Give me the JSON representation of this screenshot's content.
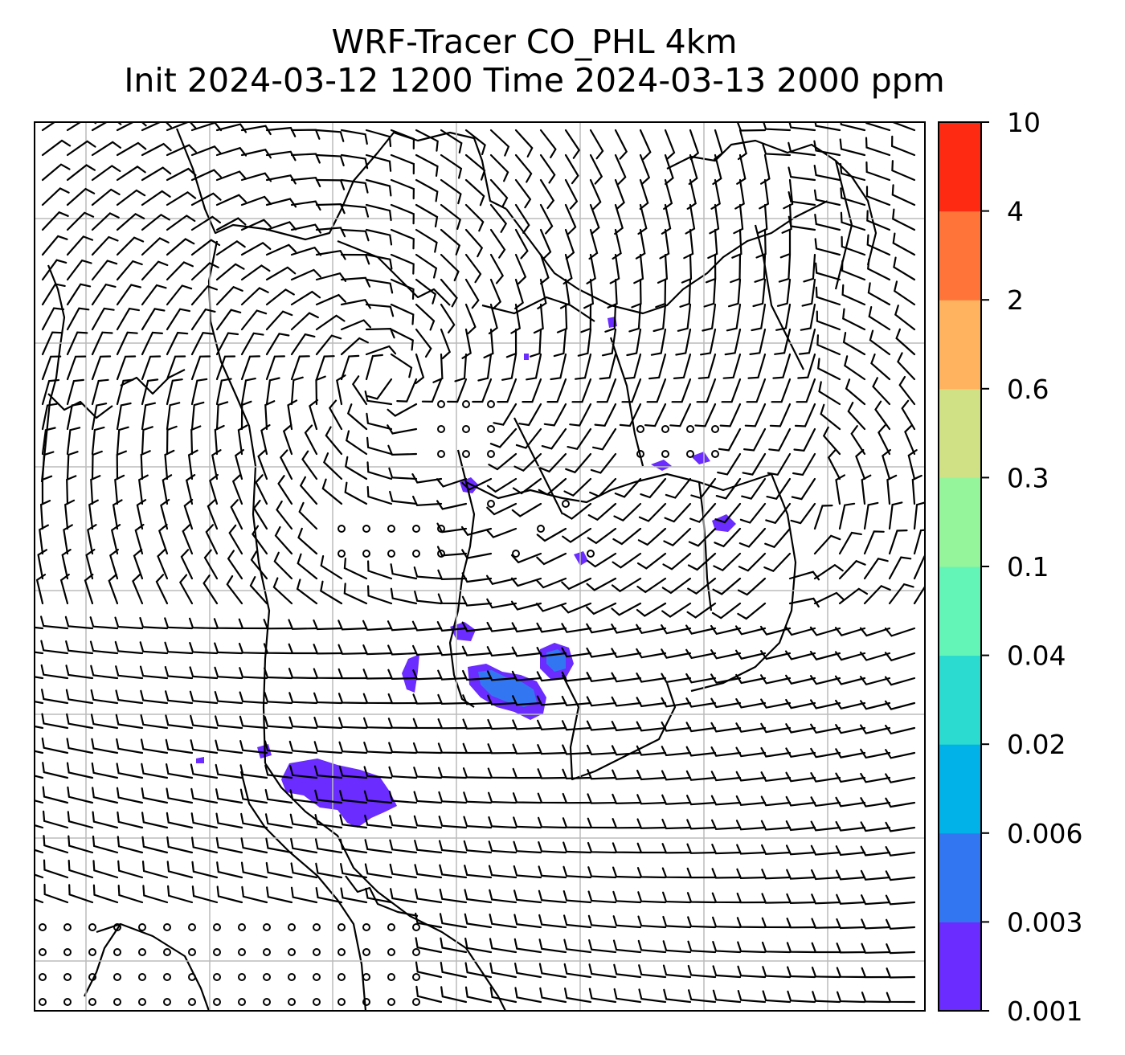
{
  "figure": {
    "title_line1": "WRF-Tracer CO_PHL 4km",
    "title_line2": "Init 2024-03-12 1200 Time 2024-03-13 2000 ppm"
  },
  "map": {
    "background_color": "#ffffff",
    "gridlines": true,
    "gridline_color": "#bbbbbb",
    "coastline_color": "#000000",
    "wind_barbs": true,
    "calm_marker": "small open circle"
  },
  "colorbar": {
    "levels": [
      "0.001",
      "0.003",
      "0.006",
      "0.02",
      "0.04",
      "0.1",
      "0.3",
      "0.6",
      "2",
      "4",
      "10"
    ],
    "colors": [
      "#6a2cff",
      "#3376f2",
      "#00b2e8",
      "#2bdbd0",
      "#63f5b8",
      "#94f59a",
      "#cfe085",
      "#ffb35f",
      "#ff7439",
      "#ff2a12"
    ]
  },
  "tracer_plumes": [
    {
      "name": "plume-northeast",
      "level": "0.001-0.003"
    },
    {
      "name": "plume-central",
      "level": "0.003-0.006"
    },
    {
      "name": "plume-southwest",
      "level": "0.001-0.003"
    }
  ]
}
